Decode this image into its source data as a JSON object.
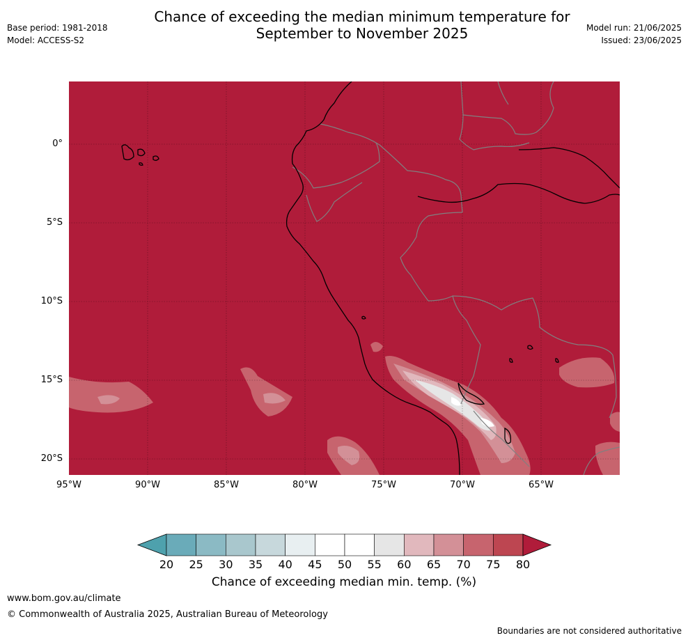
{
  "header": {
    "title_line1": "Chance of exceeding the median minimum temperature for",
    "title_line2": "September to November 2025",
    "base_period": "Base period: 1981-2018",
    "model": "Model: ACCESS-S2",
    "model_run": "Model run: 21/06/2025",
    "issued": "Issued: 23/06/2025"
  },
  "map": {
    "background_color": "#b01c3a",
    "lat_ticks": [
      "0°",
      "5°S",
      "10°S",
      "15°S",
      "20°S"
    ],
    "lon_ticks": [
      "95°W",
      "90°W",
      "85°W",
      "80°W",
      "75°W",
      "70°W",
      "65°W"
    ]
  },
  "colorbar": {
    "ticks": [
      "20",
      "25",
      "30",
      "35",
      "40",
      "45",
      "50",
      "55",
      "60",
      "65",
      "70",
      "75",
      "80"
    ],
    "colors": [
      "#4ea1ad",
      "#6aabb9",
      "#8bbac4",
      "#a9c7cd",
      "#c7d8dc",
      "#e8eff1",
      "#ffffff",
      "#ffffff",
      "#e6e6e6",
      "#e1b8bd",
      "#d39097",
      "#c7646e",
      "#bd4651",
      "#b01c3a"
    ],
    "label": "Chance of exceeding median min. temp. (%)"
  },
  "footer": {
    "url": "www.bom.gov.au/climate",
    "copyright": "© Commonwealth of Australia 2025, Australian Bureau of Meteorology",
    "disclaimer": "Boundaries are not considered authoritative"
  }
}
